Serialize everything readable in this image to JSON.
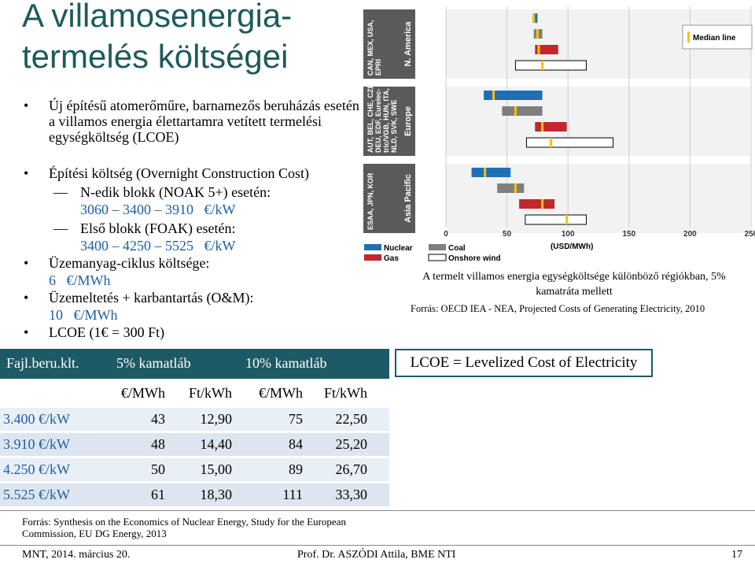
{
  "title": [
    "A villamosenergia-",
    "termelés költségei"
  ],
  "bullets": [
    {
      "text": "Új építésű atomerőműre, barnamezős beruházás esetén a villamos energia élettartamra vetített termelési egységköltség (LCOE)"
    },
    {
      "text": "Építési költség (Overnight Construction Cost)",
      "children": [
        {
          "text": "N-edik blokk (NOAK 5+) esetén:",
          "detail": "3060 – 3400 – 3910   €/kW"
        },
        {
          "text": "Első blokk (FOAK) esetén:",
          "detail": "3400 – 4250 – 5525   €/kW"
        }
      ]
    },
    {
      "text": "Üzemanyag-ciklus költsége:",
      "detail": "6   €/MWh"
    },
    {
      "text": "Üzemeltetés + karbantartás (O&M):",
      "detail": "10   €/MWh"
    },
    {
      "text": "LCOE (1€ = 300 Ft)"
    }
  ],
  "table": {
    "header": [
      "Fajl.beru.klt.",
      "5% kamatláb",
      "10% kamatláb"
    ],
    "units": [
      "€/MWh",
      "Ft/kWh",
      "€/MWh",
      "Ft/kWh"
    ],
    "rows": [
      [
        "3.400 €/kW",
        "43",
        "12,90",
        "75",
        "22,50"
      ],
      [
        "3.910 €/kW",
        "48",
        "14,40",
        "84",
        "25,20"
      ],
      [
        "4.250 €/kW",
        "50",
        "15,00",
        "89",
        "26,70"
      ],
      [
        "5.525 €/kW",
        "61",
        "18,30",
        "111",
        "33,30"
      ]
    ]
  },
  "lcoe_note": "LCOE = Levelized Cost of Electricity",
  "chart_caption": "A termelt villamos energia egységköltsége különböző régiókban, 5% kamatráta mellett",
  "chart_source": "Forrás: OECD IEA - NEA, Projected Costs of Generating Electricity, 2010",
  "source": "Forrás: Synthesis on the Economics of Nuclear Energy, Study for the European Commission, EU DG Energy, 2013",
  "footer": {
    "left": "MNT, 2014. március 20.",
    "center": "Prof. Dr. ASZÓDI Attila, BME NTI",
    "page": "17"
  },
  "chart_data": {
    "type": "range_bar",
    "regions": [
      {
        "name": "N. America",
        "countries": [
          "CAN, MEX, USA,",
          "EPRI"
        ]
      },
      {
        "name": "Europe",
        "countries": [
          "AUT, BEL, CHE, CZE,",
          "DEU, EDF, Eurelec-",
          "tric/VGB, HUN, ITA,",
          "NLD, SVK, SWE"
        ]
      },
      {
        "name": "Asia Pacific",
        "countries": [
          "ESAA, JPN, KOR"
        ]
      }
    ],
    "series": [
      {
        "name": "Nuclear",
        "color": "#1f6fb5",
        "low": [
          71,
          31,
          21
        ],
        "high": [
          75,
          79,
          53
        ],
        "median": [
          72,
          39,
          32
        ]
      },
      {
        "name": "Coal",
        "color": "#7f7f7f",
        "low": [
          72,
          46,
          42
        ],
        "high": [
          79,
          79,
          64
        ],
        "median": [
          75,
          57,
          57
        ]
      },
      {
        "name": "Gas",
        "color": "#c0282d",
        "low": [
          73,
          73,
          60
        ],
        "high": [
          92,
          99,
          89
        ],
        "median": [
          76,
          79,
          79
        ]
      },
      {
        "name": "Onshore wind",
        "color": "#ffffff",
        "low": [
          57,
          66,
          65
        ],
        "high": [
          115,
          137,
          115
        ],
        "median": [
          79,
          86,
          99
        ]
      }
    ],
    "median_label": "Median line",
    "median_color": "#f5c400",
    "xlim": [
      0,
      250
    ],
    "xticks": [
      0,
      50,
      100,
      150,
      200,
      250
    ],
    "xlabel": "(USD/MWh)",
    "grid": true
  }
}
